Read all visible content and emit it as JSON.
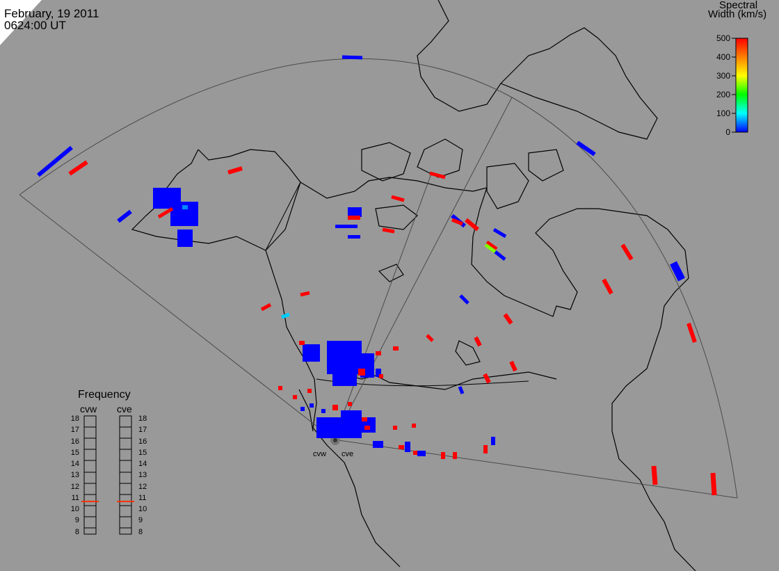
{
  "header": {
    "date": "February, 19 2011",
    "time": "0624:00 UT"
  },
  "colorbar": {
    "title_line1": "Spectral",
    "title_line2": "Width (km/s)",
    "ticks": [
      "500",
      "400",
      "300",
      "200",
      "100",
      "0"
    ],
    "colors": [
      "#ff0000",
      "#ff8000",
      "#ffff00",
      "#00ff00",
      "#00ffff",
      "#0000ff"
    ]
  },
  "frequency": {
    "title": "Frequency",
    "radar_left": "cvw",
    "radar_right": "cve",
    "levels": [
      "18",
      "17",
      "16",
      "15",
      "14",
      "13",
      "12",
      "11",
      "10",
      "9",
      "8"
    ],
    "marker_color": "#ff3300",
    "cvw_value": 10.8,
    "cve_value": 10.8
  },
  "radars": {
    "west": "cvw",
    "east": "cve"
  },
  "colors": {
    "background": "#999999",
    "coast": "#000000",
    "fov": "#4a4a4a",
    "high_width": "#ff0000",
    "low_width": "#0000ff"
  }
}
